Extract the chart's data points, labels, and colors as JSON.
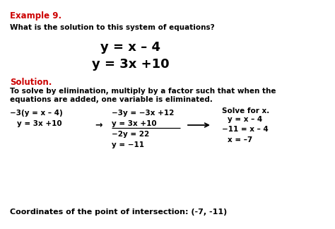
{
  "background_color": "#ffffff",
  "example_label": "Example 9.",
  "question": "What is the solution to this system of equations?",
  "eq1": "y = x – 4",
  "eq2": "y = 3x +10",
  "solution_label": "Solution.",
  "explanation_line1": "To solve by elimination, multiply by a factor such that when the",
  "explanation_line2": "equations are added, one variable is eliminated.",
  "col1_line1": "−3(y = x – 4)",
  "col1_line2": "y = 3x +10",
  "arrow1": "→",
  "col2_line1": "−3y = −3x +12",
  "col2_line2": "y = 3x +10",
  "col2_line3": "−2y = 22",
  "col2_line4": "y = −11",
  "col3_title": "Solve for x.",
  "col3_line1": "y = x – 4",
  "col3_line2": "−11 = x – 4",
  "col3_line3": "x = –7",
  "coordinates": "Coordinates of the point of intersection: (-7, -11)",
  "red_color": "#cc0000",
  "black_color": "#000000"
}
